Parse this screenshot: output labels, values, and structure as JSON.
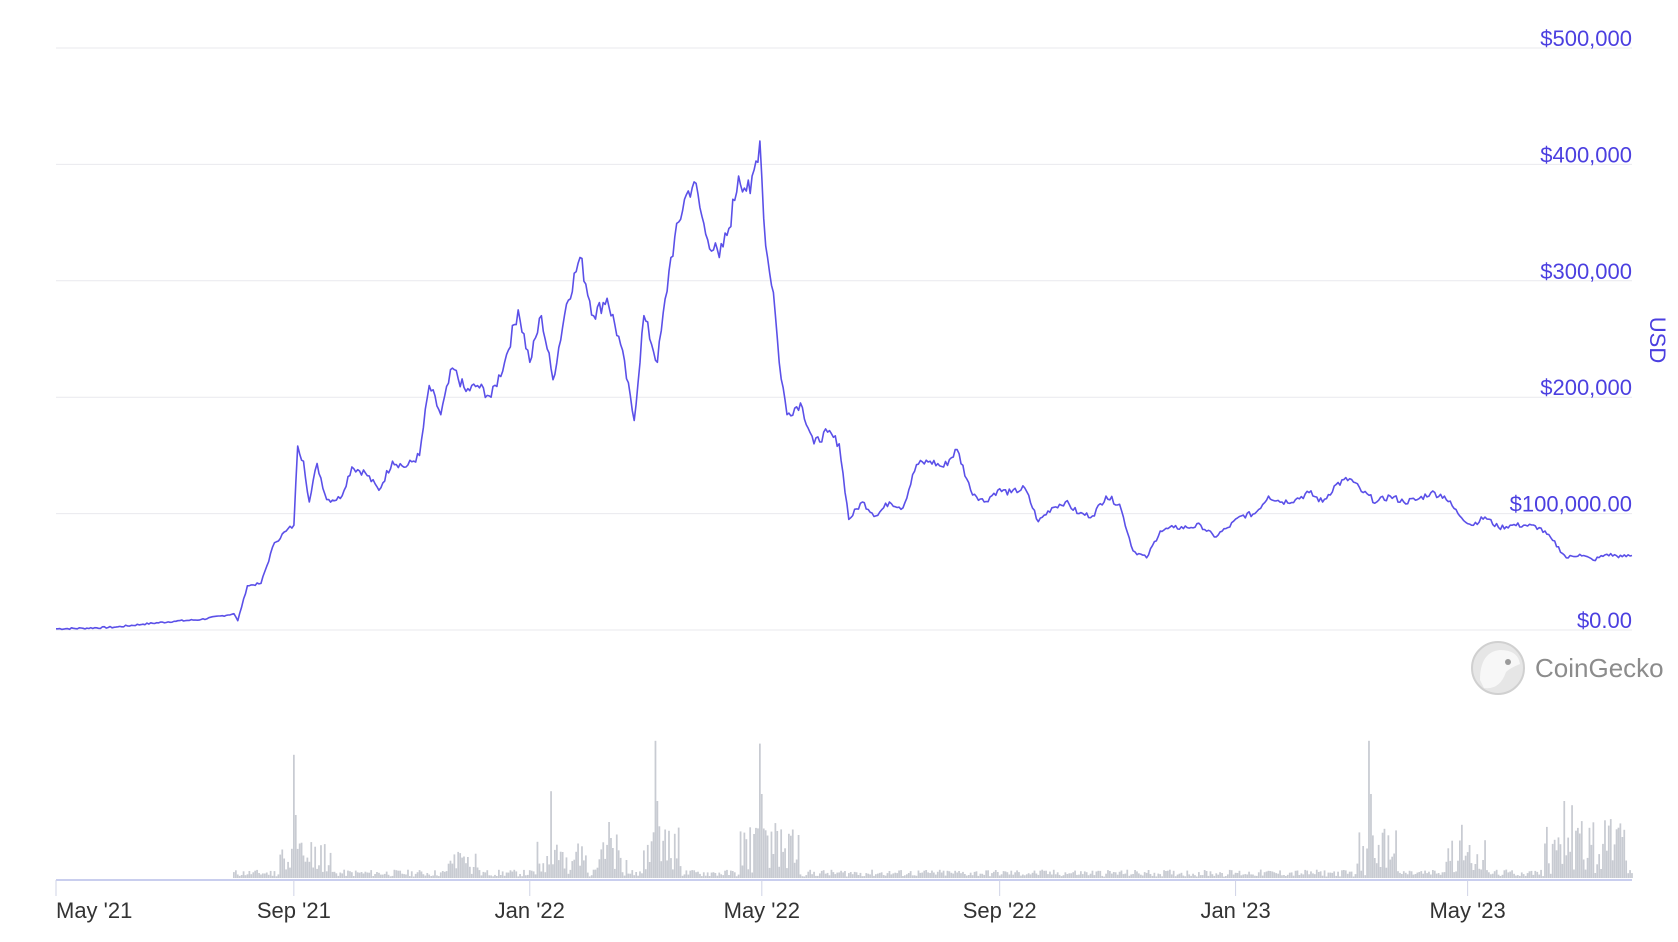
{
  "chart_data": {
    "type": "line",
    "y_axis_title": "USD",
    "ylim": [
      0,
      500000
    ],
    "y_ticks": [
      {
        "value": 0,
        "label": "$0.00"
      },
      {
        "value": 100000,
        "label": "$100,000.00"
      },
      {
        "value": 200000,
        "label": "$200,000"
      },
      {
        "value": 300000,
        "label": "$300,000"
      },
      {
        "value": 400000,
        "label": "$400,000"
      },
      {
        "value": 500000,
        "label": "$500,000"
      }
    ],
    "x_range": [
      "2021-05-01",
      "2023-07-25"
    ],
    "x_ticks": [
      {
        "date": "2021-05-01",
        "label": "May '21"
      },
      {
        "date": "2021-09-01",
        "label": "Sep '21"
      },
      {
        "date": "2022-01-01",
        "label": "Jan '22"
      },
      {
        "date": "2022-05-01",
        "label": "May '22"
      },
      {
        "date": "2022-09-01",
        "label": "Sep '22"
      },
      {
        "date": "2023-01-01",
        "label": "Jan '23"
      },
      {
        "date": "2023-05-01",
        "label": "May '23"
      }
    ],
    "grid": true,
    "line_color": "#5b50e8",
    "volume_color": "#c8cbd2",
    "series": [
      {
        "points": [
          [
            "2021-05-01",
            1000
          ],
          [
            "2021-05-15",
            1500
          ],
          [
            "2021-06-01",
            2500
          ],
          [
            "2021-06-15",
            5000
          ],
          [
            "2021-07-01",
            7500
          ],
          [
            "2021-07-15",
            9000
          ],
          [
            "2021-08-01",
            14000
          ],
          [
            "2021-08-03",
            8000
          ],
          [
            "2021-08-08",
            38000
          ],
          [
            "2021-08-15",
            40000
          ],
          [
            "2021-08-22",
            75000
          ],
          [
            "2021-08-28",
            85000
          ],
          [
            "2021-09-01",
            90000
          ],
          [
            "2021-09-03",
            158000
          ],
          [
            "2021-09-06",
            145000
          ],
          [
            "2021-09-09",
            110000
          ],
          [
            "2021-09-13",
            143000
          ],
          [
            "2021-09-18",
            112000
          ],
          [
            "2021-09-25",
            113000
          ],
          [
            "2021-10-01",
            140000
          ],
          [
            "2021-10-08",
            135000
          ],
          [
            "2021-10-15",
            120000
          ],
          [
            "2021-10-22",
            145000
          ],
          [
            "2021-10-29",
            140000
          ],
          [
            "2021-11-05",
            150000
          ],
          [
            "2021-11-10",
            210000
          ],
          [
            "2021-11-16",
            185000
          ],
          [
            "2021-11-22",
            225000
          ],
          [
            "2021-11-29",
            205000
          ],
          [
            "2021-12-05",
            210000
          ],
          [
            "2021-12-12",
            200000
          ],
          [
            "2021-12-19",
            230000
          ],
          [
            "2021-12-26",
            275000
          ],
          [
            "2022-01-01",
            230000
          ],
          [
            "2022-01-07",
            270000
          ],
          [
            "2022-01-13",
            215000
          ],
          [
            "2022-01-20",
            280000
          ],
          [
            "2022-01-27",
            320000
          ],
          [
            "2022-02-03",
            270000
          ],
          [
            "2022-02-10",
            285000
          ],
          [
            "2022-02-17",
            245000
          ],
          [
            "2022-02-24",
            180000
          ],
          [
            "2022-03-01",
            270000
          ],
          [
            "2022-03-08",
            230000
          ],
          [
            "2022-03-15",
            320000
          ],
          [
            "2022-03-22",
            370000
          ],
          [
            "2022-03-27",
            385000
          ],
          [
            "2022-04-02",
            340000
          ],
          [
            "2022-04-09",
            320000
          ],
          [
            "2022-04-14",
            345000
          ],
          [
            "2022-04-19",
            390000
          ],
          [
            "2022-04-25",
            375000
          ],
          [
            "2022-04-30",
            420000
          ],
          [
            "2022-05-03",
            330000
          ],
          [
            "2022-05-07",
            290000
          ],
          [
            "2022-05-10",
            230000
          ],
          [
            "2022-05-14",
            185000
          ],
          [
            "2022-05-21",
            195000
          ],
          [
            "2022-05-28",
            160000
          ],
          [
            "2022-06-04",
            170000
          ],
          [
            "2022-06-10",
            160000
          ],
          [
            "2022-06-15",
            95000
          ],
          [
            "2022-06-22",
            110000
          ],
          [
            "2022-06-29",
            98000
          ],
          [
            "2022-07-06",
            110000
          ],
          [
            "2022-07-13",
            105000
          ],
          [
            "2022-07-20",
            142000
          ],
          [
            "2022-07-27",
            145000
          ],
          [
            "2022-08-03",
            140000
          ],
          [
            "2022-08-10",
            155000
          ],
          [
            "2022-08-17",
            120000
          ],
          [
            "2022-08-24",
            110000
          ],
          [
            "2022-08-31",
            120000
          ],
          [
            "2022-09-07",
            118000
          ],
          [
            "2022-09-14",
            122000
          ],
          [
            "2022-09-21",
            93000
          ],
          [
            "2022-09-28",
            105000
          ],
          [
            "2022-10-05",
            110000
          ],
          [
            "2022-10-12",
            100000
          ],
          [
            "2022-10-19",
            98000
          ],
          [
            "2022-10-26",
            115000
          ],
          [
            "2022-11-02",
            108000
          ],
          [
            "2022-11-09",
            68000
          ],
          [
            "2022-11-16",
            62000
          ],
          [
            "2022-11-23",
            85000
          ],
          [
            "2022-11-30",
            88000
          ],
          [
            "2022-12-07",
            88000
          ],
          [
            "2022-12-14",
            90000
          ],
          [
            "2022-12-21",
            80000
          ],
          [
            "2022-12-28",
            88000
          ],
          [
            "2023-01-04",
            98000
          ],
          [
            "2023-01-11",
            100000
          ],
          [
            "2023-01-18",
            115000
          ],
          [
            "2023-01-25",
            110000
          ],
          [
            "2023-02-01",
            112000
          ],
          [
            "2023-02-08",
            118000
          ],
          [
            "2023-02-15",
            110000
          ],
          [
            "2023-02-22",
            125000
          ],
          [
            "2023-03-01",
            130000
          ],
          [
            "2023-03-08",
            118000
          ],
          [
            "2023-03-15",
            110000
          ],
          [
            "2023-03-22",
            115000
          ],
          [
            "2023-03-29",
            110000
          ],
          [
            "2023-04-05",
            112000
          ],
          [
            "2023-04-12",
            118000
          ],
          [
            "2023-04-19",
            115000
          ],
          [
            "2023-04-26",
            100000
          ],
          [
            "2023-05-03",
            90000
          ],
          [
            "2023-05-10",
            97000
          ],
          [
            "2023-05-17",
            88000
          ],
          [
            "2023-05-24",
            90000
          ],
          [
            "2023-05-31",
            90000
          ],
          [
            "2023-06-07",
            88000
          ],
          [
            "2023-06-14",
            77000
          ],
          [
            "2023-06-21",
            62000
          ],
          [
            "2023-06-28",
            65000
          ],
          [
            "2023-07-05",
            60000
          ],
          [
            "2023-07-12",
            65000
          ],
          [
            "2023-07-20",
            63000
          ],
          [
            "2023-07-25",
            64000
          ]
        ]
      }
    ],
    "volume_peaks": [
      [
        "2021-09-01",
        0.88
      ],
      [
        "2021-09-02",
        0.45
      ],
      [
        "2022-01-12",
        0.62
      ],
      [
        "2022-02-11",
        0.4
      ],
      [
        "2022-03-07",
        0.98
      ],
      [
        "2022-03-08",
        0.55
      ],
      [
        "2022-04-30",
        0.96
      ],
      [
        "2022-05-01",
        0.6
      ],
      [
        "2023-03-11",
        0.98
      ],
      [
        "2023-03-12",
        0.6
      ],
      [
        "2023-04-28",
        0.38
      ],
      [
        "2023-06-20",
        0.55
      ],
      [
        "2023-06-24",
        0.52
      ]
    ]
  },
  "brand": {
    "name": "CoinGecko"
  }
}
